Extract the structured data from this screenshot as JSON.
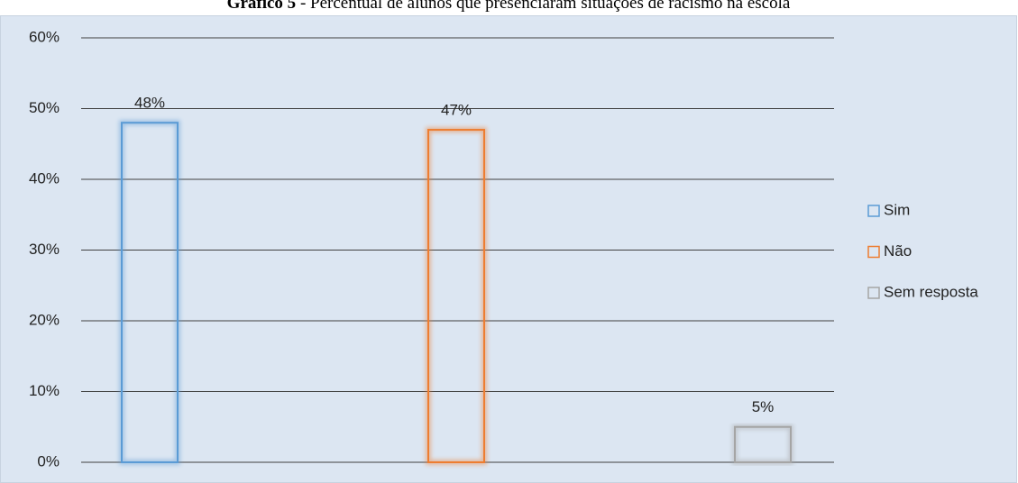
{
  "chart_data": {
    "type": "bar",
    "figure_label": "Gráfico 5",
    "title": "- Percentual de alunos que presenciaram situações de racismo na escola",
    "ylim": [
      0,
      60
    ],
    "yticks": [
      {
        "value": 0,
        "label": "0%"
      },
      {
        "value": 10,
        "label": "10%"
      },
      {
        "value": 20,
        "label": "20%"
      },
      {
        "value": 30,
        "label": "30%"
      },
      {
        "value": 40,
        "label": "40%"
      },
      {
        "value": 50,
        "label": "50%"
      },
      {
        "value": 60,
        "label": "60%"
      }
    ],
    "grid": true,
    "legend": "right",
    "series": [
      {
        "name": "Sim",
        "color": "#5b9bd5",
        "values": [
          48
        ],
        "value_labels": [
          "48%"
        ]
      },
      {
        "name": "Não",
        "color": "#ed7d31",
        "values": [
          47
        ],
        "value_labels": [
          "47%"
        ]
      },
      {
        "name": "Sem resposta",
        "color": "#a5a5a5",
        "values": [
          5
        ],
        "value_labels": [
          "5%"
        ]
      }
    ]
  }
}
